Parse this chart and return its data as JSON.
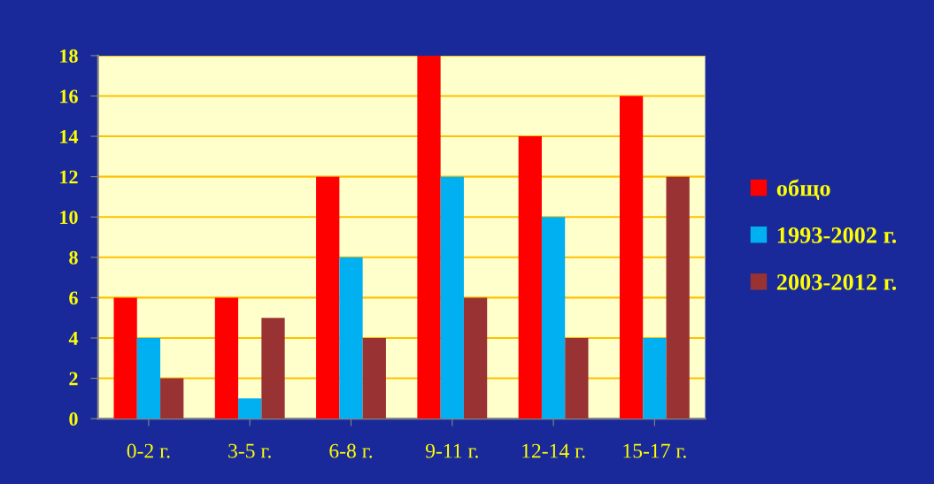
{
  "chart_data": {
    "type": "bar",
    "categories": [
      "0-2 г.",
      "3-5 г.",
      "6-8 г.",
      "9-11 г.",
      "12-14 г.",
      "15-17 г."
    ],
    "series": [
      {
        "name": "общо",
        "color": "#ff0000",
        "values": [
          6,
          6,
          12,
          18,
          14,
          16
        ]
      },
      {
        "name": "1993-2002 г.",
        "color": "#00b0f0",
        "values": [
          4,
          1,
          8,
          12,
          10,
          4
        ]
      },
      {
        "name": "2003-2012 г.",
        "color": "#993333",
        "values": [
          2,
          5,
          4,
          6,
          4,
          12
        ]
      }
    ],
    "ylim": [
      0,
      18
    ],
    "yticks": [
      0,
      2,
      4,
      6,
      8,
      10,
      12,
      14,
      16,
      18
    ],
    "grid": "y",
    "legend": "right"
  }
}
